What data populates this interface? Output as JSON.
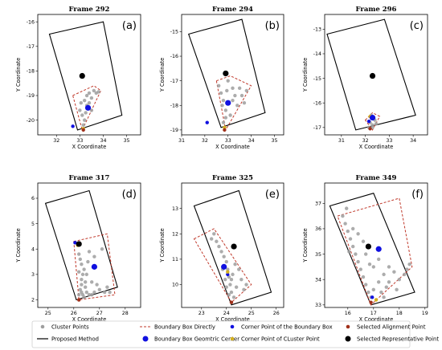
{
  "legend": {
    "items": [
      {
        "label": "Cluster Points",
        "kind": "dot",
        "color": "#9e9e9e"
      },
      {
        "label": "Proposed Method",
        "kind": "line",
        "color": "#000000"
      },
      {
        "label": "Boundary Box Directly",
        "kind": "dash",
        "color": "#c0392b"
      },
      {
        "label": "Boundary Box Geomtric Center",
        "kind": "bigdot",
        "color": "#1010e0"
      },
      {
        "label": "Corner Point of the Boundary Box",
        "kind": "dot",
        "color": "#1010e0"
      },
      {
        "label": "Corner Point of CLuster Point",
        "kind": "dot",
        "color": "#d4b020"
      },
      {
        "label": "Selected Alignment Point",
        "kind": "dot",
        "color": "#a0301a"
      },
      {
        "label": "Selected Representative Point",
        "kind": "bigdot",
        "color": "#000000"
      }
    ]
  },
  "colors": {
    "cluster": "#9e9e9e",
    "proposed": "#000000",
    "bbox": "#c0392b",
    "geo_center": "#1010e0",
    "corner_bbox": "#1010e0",
    "corner_cluster": "#d4b020",
    "alignment": "#a0301a",
    "representative": "#000000"
  },
  "chart_data": [
    {
      "type": "scatter",
      "title": "Frame 292",
      "panel_label": "(a)",
      "xlabel": "X Coordinate",
      "ylabel": "Y Coordinate",
      "xlim": [
        31.2,
        35.6
      ],
      "ylim": [
        -20.6,
        -15.7
      ],
      "xticks": [
        32,
        33,
        34,
        35
      ],
      "yticks": [
        -20,
        -19,
        -18,
        -17,
        -16
      ],
      "proposed_box": [
        [
          31.7,
          -16.5
        ],
        [
          34.0,
          -16.0
        ],
        [
          34.8,
          -19.8
        ],
        [
          32.9,
          -20.4
        ]
      ],
      "bbox_directly": [
        [
          32.7,
          -19.0
        ],
        [
          33.6,
          -18.6
        ],
        [
          33.9,
          -18.8
        ],
        [
          33.1,
          -20.4
        ]
      ],
      "geo_center": [
        33.35,
        -19.5
      ],
      "corner_bbox": [
        32.7,
        -20.25
      ],
      "corner_cluster": [
        33.15,
        -20.35
      ],
      "alignment": [
        33.15,
        -20.4
      ],
      "representative": [
        33.1,
        -18.2
      ],
      "cluster_points": [
        [
          33.2,
          -19.2
        ],
        [
          33.3,
          -19.0
        ],
        [
          33.4,
          -18.9
        ],
        [
          33.5,
          -19.1
        ],
        [
          33.6,
          -18.8
        ],
        [
          33.7,
          -18.9
        ],
        [
          33.0,
          -19.6
        ],
        [
          33.1,
          -19.8
        ],
        [
          33.2,
          -20.0
        ],
        [
          33.15,
          -20.2
        ],
        [
          33.3,
          -19.4
        ],
        [
          33.4,
          -19.3
        ],
        [
          33.8,
          -18.85
        ],
        [
          33.25,
          -19.7
        ],
        [
          33.05,
          -19.3
        ],
        [
          33.5,
          -19.6
        ]
      ]
    },
    {
      "type": "scatter",
      "title": "Frame 294",
      "panel_label": "(b)",
      "xlabel": "X Coordinate",
      "ylabel": "Y Coordinate",
      "xlim": [
        31.0,
        35.4
      ],
      "ylim": [
        -19.2,
        -14.3
      ],
      "xticks": [
        31,
        32,
        33,
        34,
        35
      ],
      "yticks": [
        -19,
        -18,
        -17,
        -16,
        -15
      ],
      "proposed_box": [
        [
          31.3,
          -15.1
        ],
        [
          33.6,
          -14.5
        ],
        [
          34.6,
          -18.3
        ],
        [
          32.7,
          -18.9
        ]
      ],
      "bbox_directly": [
        [
          32.5,
          -17.0
        ],
        [
          33.1,
          -16.8
        ],
        [
          34.0,
          -17.2
        ],
        [
          32.9,
          -19.0
        ]
      ],
      "geo_center": [
        33.0,
        -17.9
      ],
      "corner_bbox": [
        32.1,
        -18.7
      ],
      "corner_cluster": [
        32.85,
        -18.9
      ],
      "alignment": [
        32.85,
        -19.0
      ],
      "representative": [
        32.9,
        -16.7
      ],
      "cluster_points": [
        [
          32.6,
          -17.2
        ],
        [
          32.7,
          -17.5
        ],
        [
          32.8,
          -17.8
        ],
        [
          32.9,
          -18.2
        ],
        [
          32.9,
          -18.5
        ],
        [
          33.0,
          -17.0
        ],
        [
          33.2,
          -17.3
        ],
        [
          33.3,
          -17.6
        ],
        [
          33.5,
          -17.3
        ],
        [
          33.6,
          -17.6
        ],
        [
          33.8,
          -17.4
        ],
        [
          33.4,
          -18.0
        ],
        [
          33.1,
          -18.4
        ],
        [
          32.75,
          -18.0
        ],
        [
          32.95,
          -17.4
        ],
        [
          33.7,
          -17.9
        ],
        [
          33.2,
          -17.8
        ],
        [
          32.8,
          -18.7
        ]
      ]
    },
    {
      "type": "scatter",
      "title": "Frame 296",
      "panel_label": "(c)",
      "xlabel": "X Coordinate",
      "ylabel": "Y Coordinate",
      "xlim": [
        30.3,
        34.6
      ],
      "ylim": [
        -17.3,
        -12.4
      ],
      "xticks": [
        31,
        32,
        33,
        34
      ],
      "yticks": [
        -17,
        -16,
        -15,
        -14,
        -13
      ],
      "proposed_box": [
        [
          30.4,
          -13.2
        ],
        [
          32.8,
          -12.6
        ],
        [
          34.1,
          -16.5
        ],
        [
          31.6,
          -17.1
        ]
      ],
      "bbox_directly": [
        [
          32.0,
          -16.7
        ],
        [
          32.3,
          -16.4
        ],
        [
          32.6,
          -16.55
        ],
        [
          32.3,
          -17.1
        ]
      ],
      "geo_center": [
        32.3,
        -16.6
      ],
      "corner_bbox": [
        32.15,
        -16.75
      ],
      "corner_cluster": [
        32.2,
        -16.55
      ],
      "alignment": [
        32.2,
        -17.05
      ],
      "representative": [
        32.3,
        -14.9
      ],
      "cluster_points": [
        [
          32.2,
          -16.8
        ],
        [
          32.3,
          -16.9
        ],
        [
          32.4,
          -16.7
        ],
        [
          32.25,
          -16.5
        ],
        [
          32.35,
          -16.6
        ],
        [
          32.15,
          -17.0
        ],
        [
          32.45,
          -16.85
        ],
        [
          32.3,
          -17.0
        ]
      ]
    },
    {
      "type": "scatter",
      "title": "Frame 317",
      "panel_label": "(d)",
      "xlabel": "X Coordinate",
      "ylabel": "Y Coordinate",
      "xlim": [
        24.6,
        28.6
      ],
      "ylim": [
        1.7,
        6.6
      ],
      "xticks": [
        25,
        26,
        27,
        28
      ],
      "yticks": [
        2,
        3,
        4,
        5,
        6
      ],
      "proposed_box": [
        [
          24.9,
          5.8
        ],
        [
          26.6,
          6.3
        ],
        [
          27.7,
          2.5
        ],
        [
          26.1,
          2.0
        ]
      ],
      "bbox_directly": [
        [
          26.0,
          4.3
        ],
        [
          27.3,
          4.6
        ],
        [
          27.6,
          2.2
        ],
        [
          26.2,
          2.0
        ]
      ],
      "geo_center": [
        26.8,
        3.3
      ],
      "corner_bbox": [
        26.05,
        4.25
      ],
      "corner_cluster": [
        26.15,
        4.15
      ],
      "alignment": [
        26.2,
        2.0
      ],
      "representative": [
        26.2,
        4.2
      ],
      "cluster_points": [
        [
          26.2,
          2.2
        ],
        [
          26.25,
          2.4
        ],
        [
          26.3,
          2.6
        ],
        [
          26.3,
          2.8
        ],
        [
          26.35,
          3.0
        ],
        [
          26.4,
          3.2
        ],
        [
          26.3,
          3.4
        ],
        [
          26.25,
          3.6
        ],
        [
          26.2,
          3.8
        ],
        [
          26.45,
          2.5
        ],
        [
          26.5,
          2.3
        ],
        [
          26.6,
          2.2
        ],
        [
          26.8,
          2.3
        ],
        [
          27.0,
          2.4
        ],
        [
          27.2,
          2.3
        ],
        [
          26.6,
          3.9
        ],
        [
          26.8,
          3.7
        ],
        [
          27.1,
          4.0
        ],
        [
          26.5,
          3.0
        ],
        [
          26.7,
          2.7
        ],
        [
          26.9,
          2.6
        ],
        [
          26.35,
          2.2
        ],
        [
          26.4,
          2.1
        ],
        [
          27.3,
          2.5
        ],
        [
          26.55,
          3.5
        ],
        [
          26.2,
          3.1
        ],
        [
          26.3,
          2.3
        ],
        [
          26.45,
          2.7
        ],
        [
          26.7,
          2.2
        ],
        [
          27.4,
          2.3
        ]
      ]
    },
    {
      "type": "scatter",
      "title": "Frame 325",
      "panel_label": "(e)",
      "xlabel": "X Coordinate",
      "ylabel": "Y Coordinate",
      "xlim": [
        22.2,
        26.3
      ],
      "ylim": [
        9.1,
        14.0
      ],
      "xticks": [
        23,
        24,
        25,
        26
      ],
      "yticks": [
        10,
        11,
        12,
        13
      ],
      "proposed_box": [
        [
          22.7,
          13.1
        ],
        [
          24.5,
          13.7
        ],
        [
          25.8,
          9.7
        ],
        [
          24.2,
          9.2
        ]
      ],
      "bbox_directly": [
        [
          22.7,
          11.8
        ],
        [
          23.5,
          12.2
        ],
        [
          25.0,
          10.0
        ],
        [
          24.2,
          9.3
        ]
      ],
      "geo_center": [
        23.9,
        10.7
      ],
      "corner_bbox": [
        24.05,
        10.4
      ],
      "corner_cluster": [
        24.05,
        10.5
      ],
      "alignment": [
        24.2,
        9.3
      ],
      "representative": [
        24.3,
        11.5
      ],
      "cluster_points": [
        [
          23.5,
          12.0
        ],
        [
          23.6,
          11.7
        ],
        [
          23.7,
          11.5
        ],
        [
          23.8,
          11.3
        ],
        [
          23.9,
          11.1
        ],
        [
          24.0,
          10.9
        ],
        [
          24.05,
          10.6
        ],
        [
          24.1,
          10.3
        ],
        [
          24.15,
          10.0
        ],
        [
          24.2,
          9.7
        ],
        [
          24.3,
          9.5
        ],
        [
          24.4,
          9.9
        ],
        [
          24.6,
          10.2
        ],
        [
          24.8,
          10.0
        ],
        [
          24.5,
          10.6
        ],
        [
          23.4,
          11.8
        ],
        [
          23.95,
          10.2
        ],
        [
          24.0,
          9.9
        ],
        [
          24.1,
          9.6
        ],
        [
          24.25,
          10.4
        ],
        [
          24.7,
          9.8
        ],
        [
          23.85,
          10.6
        ],
        [
          24.35,
          10.8
        ],
        [
          24.2,
          10.2
        ]
      ]
    },
    {
      "type": "scatter",
      "title": "Frame 349",
      "panel_label": "(f)",
      "xlabel": "X Coordinate",
      "ylabel": "Y Coordinate",
      "xlim": [
        15.1,
        19.1
      ],
      "ylim": [
        32.9,
        37.8
      ],
      "xticks": [
        16,
        17,
        18,
        19
      ],
      "yticks": [
        33,
        34,
        35,
        36,
        37
      ],
      "proposed_box": [
        [
          15.3,
          36.9
        ],
        [
          17.0,
          37.4
        ],
        [
          18.6,
          33.5
        ],
        [
          16.9,
          33.0
        ]
      ],
      "bbox_directly": [
        [
          15.6,
          36.5
        ],
        [
          18.0,
          37.2
        ],
        [
          18.5,
          34.5
        ],
        [
          16.9,
          33.0
        ]
      ],
      "geo_center": [
        17.2,
        35.2
      ],
      "corner_bbox": [
        16.95,
        33.3
      ],
      "corner_cluster": [
        17.1,
        33.2
      ],
      "alignment": [
        16.9,
        33.1
      ],
      "representative": [
        16.8,
        35.3
      ],
      "cluster_points": [
        [
          15.8,
          36.5
        ],
        [
          15.9,
          36.2
        ],
        [
          16.0,
          35.9
        ],
        [
          16.1,
          35.6
        ],
        [
          16.2,
          35.3
        ],
        [
          16.3,
          35.0
        ],
        [
          16.4,
          34.7
        ],
        [
          16.5,
          34.4
        ],
        [
          16.6,
          34.1
        ],
        [
          16.7,
          33.8
        ],
        [
          16.8,
          33.5
        ],
        [
          16.9,
          33.3
        ],
        [
          17.0,
          33.6
        ],
        [
          17.2,
          33.9
        ],
        [
          17.4,
          34.2
        ],
        [
          17.6,
          34.5
        ],
        [
          17.8,
          34.3
        ],
        [
          18.0,
          34.0
        ],
        [
          18.2,
          34.2
        ],
        [
          17.5,
          33.7
        ],
        [
          17.3,
          33.5
        ],
        [
          16.4,
          35.8
        ],
        [
          16.7,
          35.0
        ],
        [
          17.0,
          34.5
        ],
        [
          17.2,
          34.8
        ],
        [
          16.2,
          36.0
        ],
        [
          15.95,
          36.8
        ],
        [
          17.6,
          33.9
        ],
        [
          18.3,
          34.4
        ],
        [
          17.9,
          33.6
        ],
        [
          16.6,
          35.5
        ],
        [
          16.85,
          34.6
        ],
        [
          17.4,
          33.3
        ],
        [
          16.05,
          35.1
        ],
        [
          18.4,
          34.6
        ]
      ]
    }
  ]
}
